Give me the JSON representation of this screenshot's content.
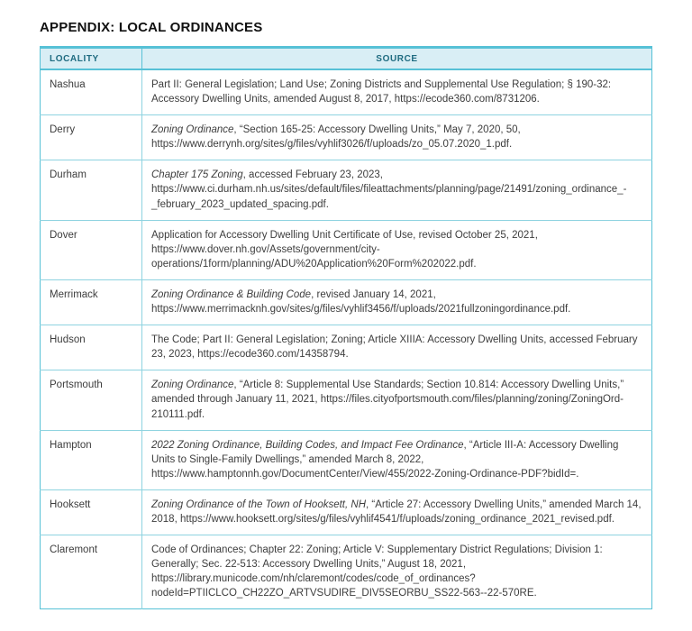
{
  "page": {
    "title": "APPENDIX: LOCAL ORDINANCES"
  },
  "colors": {
    "table_border": "#57c1d6",
    "header_background": "#d9eef5",
    "header_text": "#1e6b80",
    "body_text": "#3d3d3d"
  },
  "table": {
    "columns": [
      "LOCALITY",
      "SOURCE"
    ],
    "rows": [
      {
        "locality": "Nashua",
        "source": [
          {
            "italic": false,
            "text": "Part II: General Legislation; Land Use; Zoning Districts and Supplemental Use Regulation; § 190-32: Accessory Dwelling Units, amended August 8, 2017, https://ecode360.com/8731206."
          }
        ]
      },
      {
        "locality": "Derry",
        "source": [
          {
            "italic": true,
            "text": "Zoning Ordinance"
          },
          {
            "italic": false,
            "text": ", “Section 165-25: Accessory Dwelling Units,” May 7, 2020, 50,  https://www.derrynh.org/sites/g/files/vyhlif3026/f/uploads/zo_05.07.2020_1.pdf."
          }
        ]
      },
      {
        "locality": "Durham",
        "source": [
          {
            "italic": true,
            "text": "Chapter 175 Zoning"
          },
          {
            "italic": false,
            "text": ", accessed February 23, 2023, https://www.ci.durham.nh.us/sites/default/files/fileattachments/planning/page/21491/zoning_ordinance_-_february_2023_updated_spacing.pdf."
          }
        ]
      },
      {
        "locality": "Dover",
        "source": [
          {
            "italic": false,
            "text": "Application for Accessory Dwelling Unit Certificate of Use, revised October 25, 2021, https://www.dover.nh.gov/Assets/government/city-operations/1form/planning/ADU%20Application%20Form%202022.pdf."
          }
        ]
      },
      {
        "locality": "Merrimack",
        "source": [
          {
            "italic": true,
            "text": "Zoning Ordinance & Building Code"
          },
          {
            "italic": false,
            "text": ", revised January 14, 2021, https://www.merrimacknh.gov/sites/g/files/vyhlif3456/f/uploads/2021fullzoningordinance.pdf."
          }
        ]
      },
      {
        "locality": "Hudson",
        "source": [
          {
            "italic": false,
            "text": "The Code; Part II: General Legislation; Zoning; Article XIIIA: Accessory Dwelling Units, accessed February 23, 2023, https://ecode360.com/14358794."
          }
        ]
      },
      {
        "locality": "Portsmouth",
        "source": [
          {
            "italic": true,
            "text": "Zoning Ordinance"
          },
          {
            "italic": false,
            "text": ", “Article 8: Supplemental Use Standards; Section 10.814: Accessory Dwelling Units,” amended through January 11, 2021, https://files.cityofportsmouth.com/files/planning/zoning/ZoningOrd-210111.pdf."
          }
        ]
      },
      {
        "locality": "Hampton",
        "source": [
          {
            "italic": true,
            "text": "2022 Zoning Ordinance, Building Codes, and Impact Fee Ordinance"
          },
          {
            "italic": false,
            "text": ", “Article III-A: Accessory Dwelling Units to Single-Family Dwellings,” amended March 8, 2022, https://www.hamptonnh.gov/DocumentCenter/View/455/2022-Zoning-Ordinance-PDF?bidId=."
          }
        ]
      },
      {
        "locality": "Hooksett",
        "source": [
          {
            "italic": true,
            "text": "Zoning Ordinance of the Town of Hooksett, NH"
          },
          {
            "italic": false,
            "text": ", “Article 27: Accessory Dwelling Units,” amended March 14, 2018, https://www.hooksett.org/sites/g/files/vyhlif4541/f/uploads/zoning_ordinance_2021_revised.pdf."
          }
        ]
      },
      {
        "locality": "Claremont",
        "source": [
          {
            "italic": false,
            "text": "Code of Ordinances; Chapter 22: Zoning; Article V: Supplementary District Regulations; Division 1: Generally; Sec. 22-513: Accessory Dwelling Units,” August 18, 2021, https://library.municode.com/nh/claremont/codes/code_of_ordinances?nodeId=PTIICLCO_CH22ZO_ARTVSUDIRE_DIV5SEORBU_SS22-563--22-570RE."
          }
        ]
      }
    ]
  }
}
